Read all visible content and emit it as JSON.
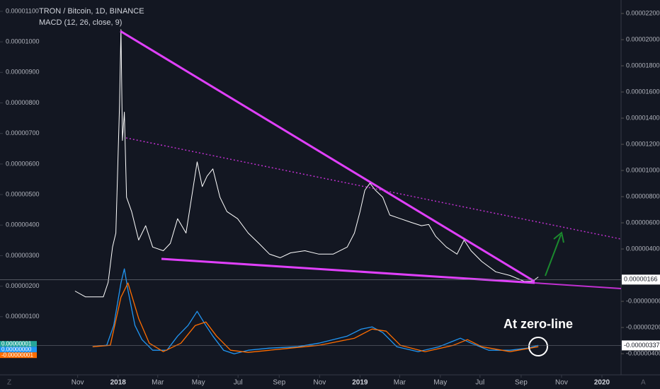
{
  "chart_data": [
    {
      "type": "line",
      "title": "TRON / Bitcoin, 1D, BINANCE",
      "color": "#ffffff",
      "x": [
        2017.822,
        2017.865,
        2017.939,
        2017.959,
        2017.977,
        2017.991,
        2018.006,
        2018.012,
        2018.018,
        2018.026,
        2018.035,
        2018.056,
        2018.085,
        2018.114,
        2018.143,
        2018.187,
        2018.216,
        2018.246,
        2018.281,
        2018.304,
        2018.327,
        2018.348,
        2018.368,
        2018.392,
        2018.421,
        2018.45,
        2018.494,
        2018.538,
        2018.582,
        2018.626,
        2018.67,
        2018.713,
        2018.772,
        2018.83,
        2018.889,
        2018.947,
        2018.977,
        2019.0,
        2019.02,
        2019.041,
        2019.064,
        2019.094,
        2019.123,
        2019.167,
        2019.211,
        2019.254,
        2019.284,
        2019.313,
        2019.357,
        2019.401,
        2019.43,
        2019.459,
        2019.503,
        2019.561,
        2019.62,
        2019.678,
        2019.713,
        2019.737
      ],
      "values": [
        1.84e-06,
        1.65e-06,
        1.65e-06,
        2.12e-06,
        3.28e-06,
        3.74e-06,
        7.93e-06,
        1.04e-05,
        6.77e-06,
        7.7e-06,
        4.91e-06,
        4.44e-06,
        3.51e-06,
        3.98e-06,
        3.28e-06,
        3.16e-06,
        3.4e-06,
        4.21e-06,
        3.74e-06,
        4.91e-06,
        6.07e-06,
        5.26e-06,
        5.6e-06,
        5.84e-06,
        4.91e-06,
        4.44e-06,
        4.21e-06,
        3.74e-06,
        3.4e-06,
        3.05e-06,
        2.93e-06,
        3.09e-06,
        3.16e-06,
        3.05e-06,
        3.05e-06,
        3.28e-06,
        3.74e-06,
        4.44e-06,
        5.14e-06,
        5.37e-06,
        5.14e-06,
        4.91e-06,
        4.33e-06,
        4.21e-06,
        4.09e-06,
        3.98e-06,
        4.02e-06,
        3.63e-06,
        3.28e-06,
        3.05e-06,
        3.51e-06,
        3.16e-06,
        2.81e-06,
        2.47e-06,
        2.35e-06,
        2.16e-06,
        2.16e-06,
        2.3e-06
      ],
      "xlim": [
        2017.512,
        2020.079
      ],
      "xticks": [
        {
          "value": 2017.833,
          "label": "Nov"
        },
        2018,
        {
          "value": 2018.164,
          "label": "Mar"
        },
        {
          "value": 2018.332,
          "label": "May"
        },
        {
          "value": 2018.496,
          "label": "Jul"
        },
        {
          "value": 2018.666,
          "label": "Sep"
        },
        {
          "value": 2018.833,
          "label": "Nov"
        },
        2019,
        {
          "value": 2019.164,
          "label": "Mar"
        },
        {
          "value": 2019.332,
          "label": "May"
        },
        {
          "value": 2019.496,
          "label": "Jul"
        },
        {
          "value": 2019.666,
          "label": "Sep"
        },
        {
          "value": 2019.833,
          "label": "Nov"
        },
        2020
      ],
      "ylim": [
        -1.02e-06,
        1.137e-05
      ],
      "yticks": [
        {
          "value": 1e-06,
          "label": "0.00000100"
        },
        {
          "value": 2e-06,
          "label": "0.00000200"
        },
        {
          "value": 3e-06,
          "label": "0.00000300"
        },
        {
          "value": 4e-06,
          "label": "0.00000400"
        },
        {
          "value": 5e-06,
          "label": "0.00000500"
        },
        {
          "value": 6e-06,
          "label": "0.00000600"
        },
        {
          "value": 7e-06,
          "label": "0.00000700"
        },
        {
          "value": 8e-06,
          "label": "0.00000800"
        },
        {
          "value": 9e-06,
          "label": "0.00000900"
        },
        {
          "value": 1e-05,
          "label": "0.00001000"
        },
        {
          "value": 1.1e-05,
          "label": "0.00001100"
        }
      ],
      "y2lim": [
        -5.89e-06,
        2.303e-05
      ],
      "y2ticks": [
        {
          "value": 2.2e-05,
          "label": "0.00002200"
        },
        {
          "value": 2e-05,
          "label": "0.00002000"
        },
        {
          "value": 1.8e-05,
          "label": "0.00001800"
        },
        {
          "value": 1.6e-05,
          "label": "0.00001600"
        },
        {
          "value": 1.4e-05,
          "label": "0.00001400"
        },
        {
          "value": 1.2e-05,
          "label": "0.00001200"
        },
        {
          "value": 1e-05,
          "label": "0.00001000"
        },
        {
          "value": 8e-06,
          "label": "0.00000800"
        },
        {
          "value": 6e-06,
          "label": "0.00000600"
        },
        {
          "value": 4e-06,
          "label": "0.00000400"
        },
        {
          "value": 0,
          "label": "-0.00000000"
        },
        {
          "value": -2e-06,
          "label": "-0.00000200"
        },
        {
          "value": -4e-06,
          "label": "-0.00000400"
        }
      ],
      "last_value_labels": [
        {
          "value": 1.66e-06,
          "label": "0.00000166"
        },
        {
          "value": -3.37e-06,
          "label": "-0.00000337"
        }
      ],
      "annotation": "At zero-line"
    },
    {
      "type": "line",
      "title": "MACD (12, 26, close, 9)",
      "series": [
        {
          "color": "#2196f3",
          "x": [
            2017.895,
            2017.953,
            2017.982,
            2018.012,
            2018.026,
            2018.041,
            2018.07,
            2018.099,
            2018.143,
            2018.202,
            2018.246,
            2018.289,
            2018.327,
            2018.363,
            2018.392,
            2018.436,
            2018.48,
            2018.538,
            2018.626,
            2018.743,
            2018.83,
            2018.947,
            2019.006,
            2019.05,
            2019.094,
            2019.152,
            2019.24,
            2019.327,
            2019.415,
            2019.459,
            2019.532,
            2019.62,
            2019.693,
            2019.737
          ],
          "values": [
            5e-09,
            7.5e-09,
            4.25e-08,
            1.175e-07,
            1.425e-07,
            1.05e-07,
            4.25e-08,
            1.75e-08,
            -1.25e-09,
            -1.25e-09,
            2.375e-08,
            4.25e-08,
            6.75e-08,
            4.25e-08,
            2.375e-08,
            -1.25e-09,
            -7.5e-09,
            -1.25e-09,
            2.5e-09,
            5e-09,
            1.125e-08,
            2.375e-08,
            3.625e-08,
            4e-08,
            3e-08,
            5e-09,
            -3.75e-09,
            5e-09,
            2e-08,
            1.125e-08,
            -1.25e-09,
            -1.25e-09,
            2.5e-09,
            7.5e-09
          ]
        },
        {
          "color": "#ff6d00",
          "x": [
            2017.895,
            2017.968,
            2018.012,
            2018.041,
            2018.085,
            2018.129,
            2018.187,
            2018.26,
            2018.319,
            2018.363,
            2018.407,
            2018.465,
            2018.538,
            2018.684,
            2018.83,
            2018.977,
            2019.05,
            2019.108,
            2019.167,
            2019.269,
            2019.386,
            2019.444,
            2019.503,
            2019.62,
            2019.737
          ],
          "values": [
            5e-09,
            7.5e-09,
            9.25e-08,
            1.175e-07,
            5.5e-08,
            1.125e-08,
            -3.75e-09,
            1.125e-08,
            4.25e-08,
            4.875e-08,
            2.375e-08,
            -1.25e-09,
            -5e-09,
            1.25e-09,
            7.5e-09,
            2e-08,
            3.625e-08,
            3.25e-08,
            7.5e-09,
            -3.75e-09,
            7.5e-09,
            1.75e-08,
            5e-09,
            -3.75e-09,
            5e-09
          ]
        }
      ],
      "ylim": [
        -5.1e-08,
        6.175e-07
      ],
      "value_labels": [
        {
          "value": 1e-08,
          "label": "0.00000001",
          "color": "#26a69a"
        },
        {
          "value": 0,
          "label": "0.00000000",
          "color": "#2196f3"
        },
        {
          "value": -1e-08,
          "label": "-0.00000001",
          "color": "#ff6d00"
        }
      ]
    }
  ],
  "corner_labels": [
    "Z",
    "A"
  ]
}
